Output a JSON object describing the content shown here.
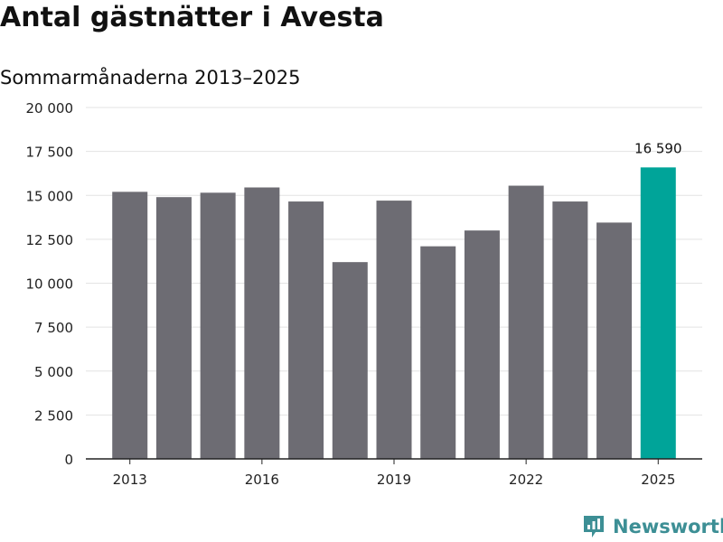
{
  "title": "Antal gästnätter i Avesta",
  "subtitle": "Sommarmånaderna 2013–2025",
  "brand": {
    "name": "Newsworthy",
    "icon": "newsworthy-logo-icon",
    "color": "#3d8f95"
  },
  "chart_data": {
    "type": "bar",
    "categories": [
      "2013",
      "2014",
      "2015",
      "2016",
      "2017",
      "2018",
      "2019",
      "2020",
      "2021",
      "2022",
      "2023",
      "2024",
      "2025"
    ],
    "values": [
      15200,
      14900,
      15150,
      15450,
      14650,
      11200,
      14700,
      12100,
      13000,
      15550,
      14650,
      13450,
      16590
    ],
    "x_tick_labels": [
      "2013",
      "2016",
      "2019",
      "2022",
      "2025"
    ],
    "y_ticks": [
      0,
      2500,
      5000,
      7500,
      10000,
      12500,
      15000,
      17500,
      20000
    ],
    "y_tick_labels": [
      "0",
      "2 500",
      "5 000",
      "7 500",
      "10 000",
      "12 500",
      "15 000",
      "17 500",
      "20 000"
    ],
    "ylim": [
      0,
      20000
    ],
    "grid": true,
    "bar_color": "#6d6c73",
    "highlight_color": "#00a499",
    "highlight_index": 12,
    "annotations": [
      {
        "category": "2025",
        "text": "16 590"
      }
    ]
  }
}
